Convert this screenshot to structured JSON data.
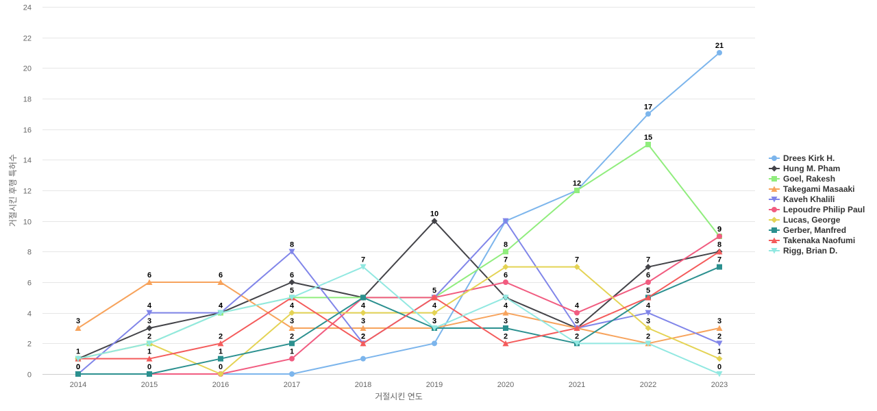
{
  "chart_data": {
    "type": "line",
    "xlabel": "거절시킨 연도",
    "ylabel": "거절시킨 후행 특허수",
    "ylim": [
      0,
      24
    ],
    "yticks": [
      0,
      2,
      4,
      6,
      8,
      10,
      12,
      14,
      16,
      18,
      20,
      22,
      24
    ],
    "grid": true,
    "legend_position": "right",
    "x": [
      "2014",
      "2015",
      "2016",
      "2017",
      "2018",
      "2019",
      "2020",
      "2021",
      "2022",
      "2023"
    ],
    "series": [
      {
        "name": "Drees Kirk H.",
        "color": "#7cb5ec",
        "marker": "circle",
        "values": [
          0,
          0,
          0,
          0,
          1,
          2,
          10,
          12,
          17,
          21
        ],
        "label_indices": [
          8,
          9
        ]
      },
      {
        "name": "Hung M. Pham",
        "color": "#434348",
        "marker": "diamond",
        "values": [
          1,
          3,
          4,
          6,
          5,
          10,
          5,
          3,
          7,
          8
        ],
        "label_indices": [
          1,
          3,
          5,
          8,
          9
        ]
      },
      {
        "name": "Goel, Rakesh",
        "color": "#90ed7d",
        "marker": "square",
        "values": [
          1,
          2,
          4,
          5,
          5,
          5,
          8,
          12,
          15,
          9
        ],
        "label_indices": [
          6,
          7,
          8,
          9
        ]
      },
      {
        "name": "Takegami Masaaki",
        "color": "#f7a35c",
        "marker": "triangle",
        "values": [
          3,
          6,
          6,
          3,
          3,
          3,
          4,
          3,
          2,
          3
        ],
        "label_indices": [
          0,
          1,
          2,
          3,
          4,
          5,
          6,
          8,
          9
        ]
      },
      {
        "name": "Kaveh Khalili",
        "color": "#8085e9",
        "marker": "triangle-down",
        "values": [
          0,
          4,
          4,
          8,
          2,
          5,
          10,
          3,
          4,
          2
        ],
        "label_indices": [
          0,
          1,
          2,
          3,
          4,
          5,
          8,
          9
        ]
      },
      {
        "name": "Lepoudre Philip Paul",
        "color": "#f15c80",
        "marker": "circle",
        "values": [
          0,
          0,
          0,
          1,
          5,
          5,
          6,
          4,
          6,
          9
        ],
        "label_indices": [
          3,
          6,
          7,
          8,
          9
        ]
      },
      {
        "name": "Lucas, George",
        "color": "#e4d354",
        "marker": "diamond",
        "values": [
          1,
          2,
          0,
          4,
          4,
          4,
          7,
          7,
          3,
          1
        ],
        "label_indices": [
          0,
          1,
          2,
          3,
          4,
          5,
          6,
          7,
          8,
          9
        ]
      },
      {
        "name": "Gerber, Manfred",
        "color": "#2b908f",
        "marker": "square",
        "values": [
          0,
          0,
          1,
          2,
          5,
          3,
          3,
          2,
          5,
          7
        ],
        "label_indices": [
          0,
          1,
          2,
          3,
          5,
          6,
          7,
          8,
          9
        ]
      },
      {
        "name": "Takenaka Naofumi",
        "color": "#f45b5b",
        "marker": "triangle",
        "values": [
          1,
          1,
          2,
          5,
          2,
          5,
          2,
          3,
          5,
          8
        ],
        "label_indices": [
          1,
          2,
          3,
          4,
          6,
          7
        ]
      },
      {
        "name": "Rigg, Brian D.",
        "color": "#91e8e1",
        "marker": "triangle-down",
        "values": [
          1,
          2,
          4,
          5,
          7,
          3,
          5,
          2,
          2,
          0
        ],
        "label_indices": [
          2,
          4,
          9
        ]
      }
    ]
  }
}
